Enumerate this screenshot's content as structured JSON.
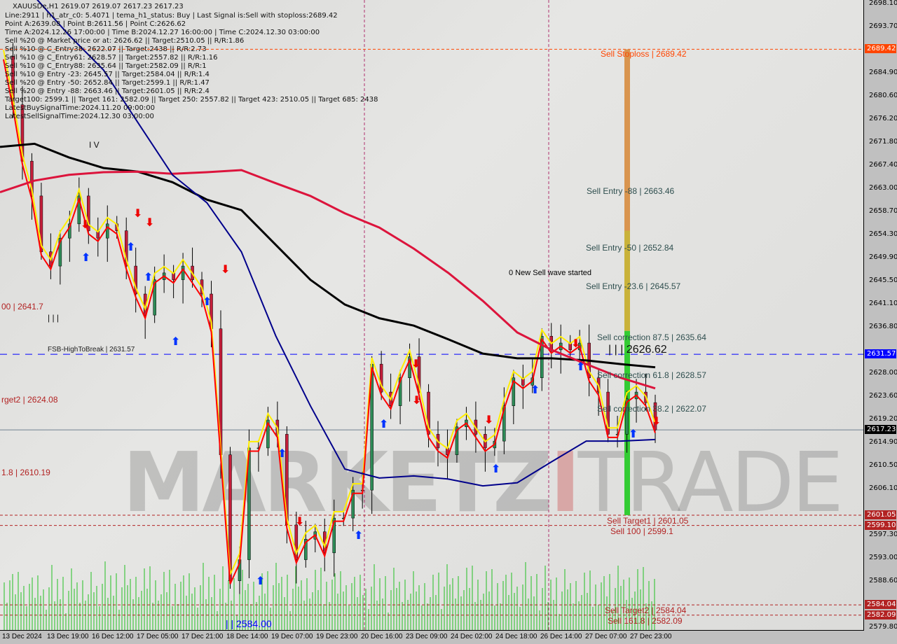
{
  "header": {
    "title": "XAUUSDe,H1  2619.07 2619.07 2617.23 2617.23",
    "lines": [
      "Line:2911 | h1_atr_c0: 5.4071 | tema_h1_status: Buy | Last Signal is:Sell with stoploss:2689.42",
      "Point A:2639.08 | Point B:2611.56 | Point C:2626.62",
      "Time A:2024.12.26 17:00:00 | Time B:2024.12.27 16:00:00 | Time C:2024.12.30 03:00:00",
      "Sell %20 @ Market price or at: 2626.62 || Target:2510.05 || R/R:1.86",
      "Sell %10 @ C_Entry38: 2622.07 || Target:2438 || R/R:2.73",
      "Sell %10 @ C_Entry61: 2628.57 || Target:2557.82 || R/R:1.16",
      "Sell %10 @ C_Entry88: 2635.64 || Target:2582.09 || R/R:1",
      "Sell %10 @ Entry -23: 2645.57 || Target:2584.04 || R/R:1.4",
      "Sell %20 @ Entry -50: 2652.84 || Target:2599.1 || R/R:1.47",
      "Sell %20 @ Entry -88: 2663.46 || Target:2601.05 || R/R:2.4",
      "Target100: 2599.1 || Target 161: 2582.09 || Target 250: 2557.82 || Target 423: 2510.05 || Target 685: 2438",
      "LatestBuySignalTime:2024.11.20 09:00:00",
      "LatestSellSignalTime:2024.12.30 03:00:00"
    ]
  },
  "watermark": "MARKETZITRADE",
  "chart_data": {
    "type": "candlestick",
    "symbol": "XAUUSDe",
    "timeframe": "H1",
    "ylim": [
      2579.8,
      2698.1
    ],
    "y_ticks": [
      "2698.10",
      "2693.70",
      "2684.90",
      "2680.60",
      "2676.20",
      "2671.80",
      "2667.40",
      "2663.00",
      "2658.70",
      "2654.30",
      "2649.90",
      "2645.50",
      "2641.10",
      "2636.80",
      "2628.00",
      "2623.60",
      "2619.20",
      "2614.90",
      "2610.50",
      "2606.10",
      "2597.30",
      "2593.00",
      "2588.60",
      "2579.80"
    ],
    "x_ticks": [
      "13 Dec 2024",
      "13 Dec 19:00",
      "16 Dec 12:00",
      "17 Dec 05:00",
      "17 Dec 21:00",
      "18 Dec 14:00",
      "19 Dec 07:00",
      "19 Dec 23:00",
      "20 Dec 16:00",
      "23 Dec 09:00",
      "24 Dec 02:00",
      "24 Dec 18:00",
      "26 Dec 14:00",
      "27 Dec 07:00",
      "27 Dec 23:00"
    ],
    "close": [
      2688.1,
      2678.9,
      2668.2,
      2661.6,
      2651.0,
      2648.3,
      2653.6,
      2656.3,
      2661.6,
      2655.0,
      2653.6,
      2656.3,
      2655.0,
      2648.3,
      2643.0,
      2639.0,
      2645.7,
      2647.0,
      2645.7,
      2648.3,
      2645.7,
      2643.0,
      2636.4,
      2612.5,
      2588.6,
      2592.6,
      2613.8,
      2613.8,
      2619.1,
      2616.4,
      2599.2,
      2592.6,
      2596.5,
      2597.9,
      2593.9,
      2600.5,
      2600.5,
      2605.8,
      2605.8,
      2629.7,
      2624.4,
      2621.8,
      2627.1,
      2631.1,
      2624.4,
      2616.4,
      2613.8,
      2612.5,
      2617.8,
      2619.1,
      2616.4,
      2613.8,
      2615.1,
      2621.8,
      2627.1,
      2625.7,
      2627.1,
      2635.0,
      2632.4,
      2633.7,
      2632.4,
      2633.7,
      2627.1,
      2624.4,
      2616.4,
      2616.4,
      2623.1,
      2624.4,
      2622.4,
      2617.23
    ],
    "series": [
      {
        "color": "#000000",
        "values": [
          2670.9,
          2671.5,
          2668.9,
          2666.9,
          2666.2,
          2664.2,
          2660.9,
          2658.9,
          2652.3,
          2645.7,
          2641.0,
          2638.4,
          2637.0,
          2634.4,
          2631.7,
          2630.8,
          2630.8,
          2630.4,
          2629.7,
          2629.1
        ]
      },
      {
        "color": "#dc143c",
        "values": [
          2662.3,
          2664.5,
          2665.6,
          2666.1,
          2666.2,
          2665.8,
          2666.1,
          2666.5,
          2664.0,
          2661.6,
          2658.3,
          2655.6,
          2651.6,
          2647.0,
          2641.7,
          2635.7,
          2632.4,
          2629.7,
          2627.1,
          2625.1
        ]
      },
      {
        "color": "#00008b",
        "values": [
          2702.0,
          2699.4,
          2692.1,
          2685.5,
          2675.5,
          2665.6,
          2660.3,
          2651.0,
          2635.0,
          2621.8,
          2609.8,
          2608.1,
          2608.5,
          2607.9,
          2606.6,
          2607.2,
          2611.2,
          2615.1,
          2615.1,
          2615.4
        ]
      }
    ],
    "levels": [
      {
        "price": 2689.42,
        "color": "#ff4500",
        "tag": "2689.42"
      },
      {
        "price": 2631.57,
        "color": "#0000ff",
        "tag": "2631.57"
      },
      {
        "price": 2617.23,
        "color": "#708090",
        "tag": "2617.23",
        "tag_color": "#000000"
      },
      {
        "price": 2601.05,
        "color": "#b22222",
        "tag": "2601.05"
      },
      {
        "price": 2599.1,
        "color": "#b22222",
        "tag": "2599.10"
      },
      {
        "price": 2584.04,
        "color": "#b22222",
        "tag": "2584.04"
      },
      {
        "price": 2582.09,
        "color": "#b22222",
        "tag": "2582.09"
      }
    ],
    "annotations": {
      "stoploss": "Sell Stoploss | 2689.42",
      "entry88": "Sell Entry -88 | 2663.46",
      "entry50": "Sell Entry -50 | 2652.84",
      "entry236": "Sell Entry -23.6 | 2645.57",
      "new_wave": "0 New Sell wave started",
      "corr875": "Sell correction 87.5 | 2635.64",
      "pointc": "| | | 2626.62",
      "corr618": "Sell correction 61.8 | 2628.57",
      "corr382": "Sell correction 38.2 | 2622.07",
      "target1": "Sell Target1 | 2601.05",
      "s100": "Sell 100 | 2599.1",
      "target2": "Sell Target2 | 2584.04",
      "s1618": "Sell 161.8 | 2582.09",
      "fsb": "FSB-HighToBreak | 2631.57",
      "left1": "00 | 2641.7",
      "left2": "rget2 | 2624.08",
      "left3": "1.8 | 2610.19",
      "iv": "I V",
      "iii": "| | |",
      "bottom_blue": "| | 2584.00"
    }
  }
}
